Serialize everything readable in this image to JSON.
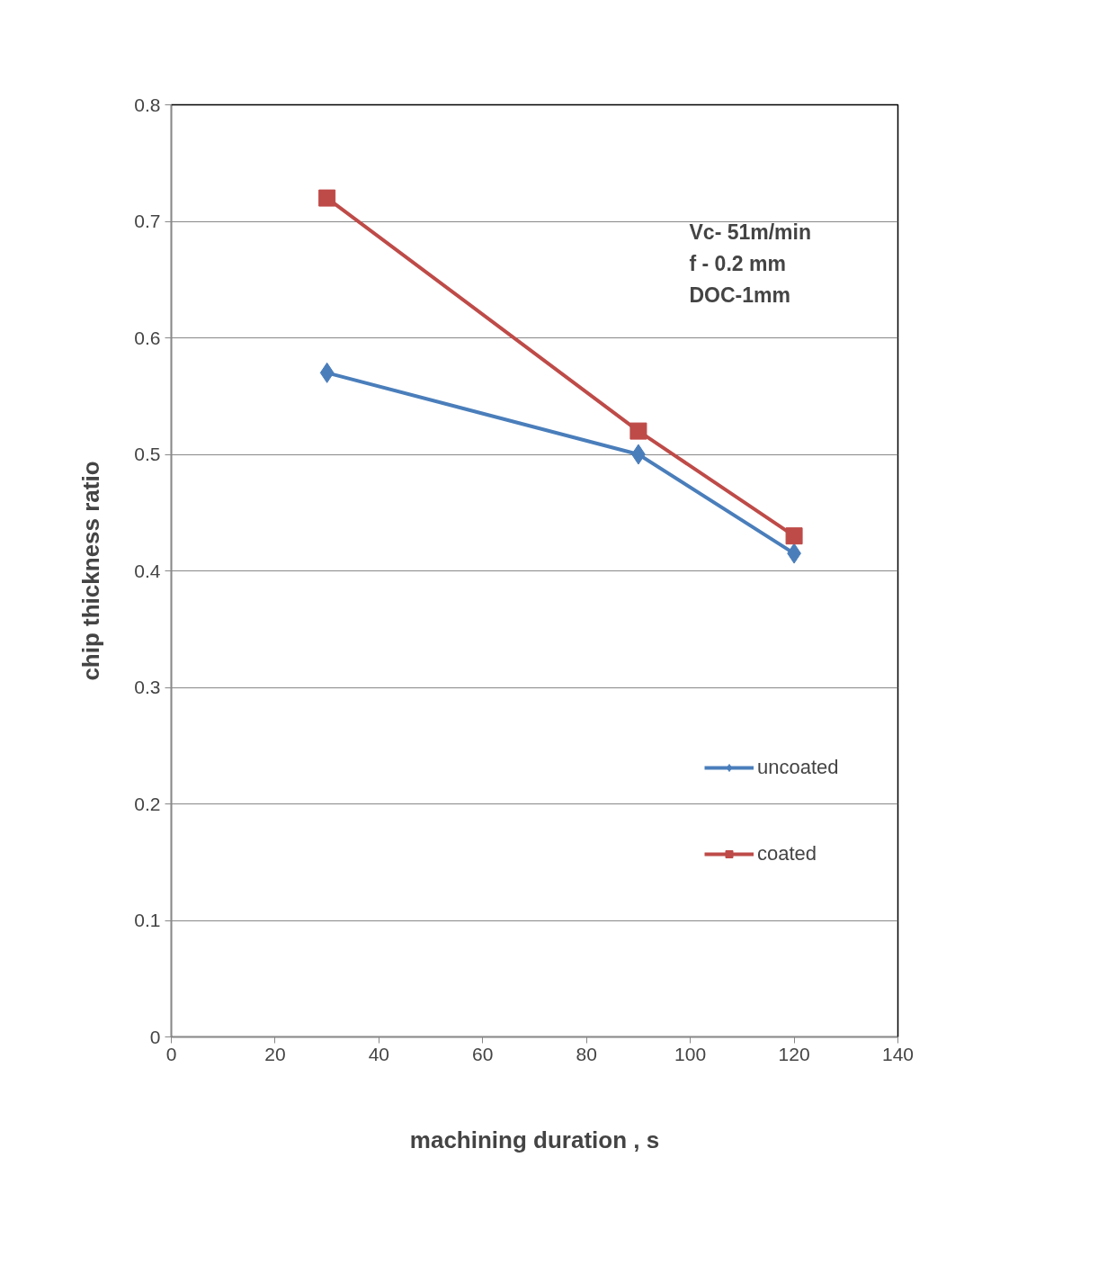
{
  "chart_data": {
    "type": "line",
    "xlabel": "machining duration , s",
    "ylabel": "chip thickness ratio",
    "annotations": [
      "Vc-  51m/min",
      "f  - 0.2 mm",
      "DOC-1mm"
    ],
    "x": [
      30,
      90,
      120
    ],
    "series": [
      {
        "name": "uncoated",
        "color": "#4a7ebb",
        "values": [
          0.57,
          0.5,
          0.415
        ],
        "marker": "diamond"
      },
      {
        "name": "coated",
        "color": "#be4b48",
        "values": [
          0.72,
          0.52,
          0.43
        ],
        "marker": "square"
      }
    ],
    "xlim": [
      0,
      140
    ],
    "ylim": [
      0,
      0.8
    ],
    "xticks": [
      0,
      20,
      40,
      60,
      80,
      100,
      120,
      140
    ],
    "yticks": [
      0,
      0.1,
      0.2,
      0.3,
      0.4,
      0.5,
      0.6,
      0.7,
      0.8
    ],
    "grid": "y",
    "legend": "right",
    "line_style": "solid"
  }
}
